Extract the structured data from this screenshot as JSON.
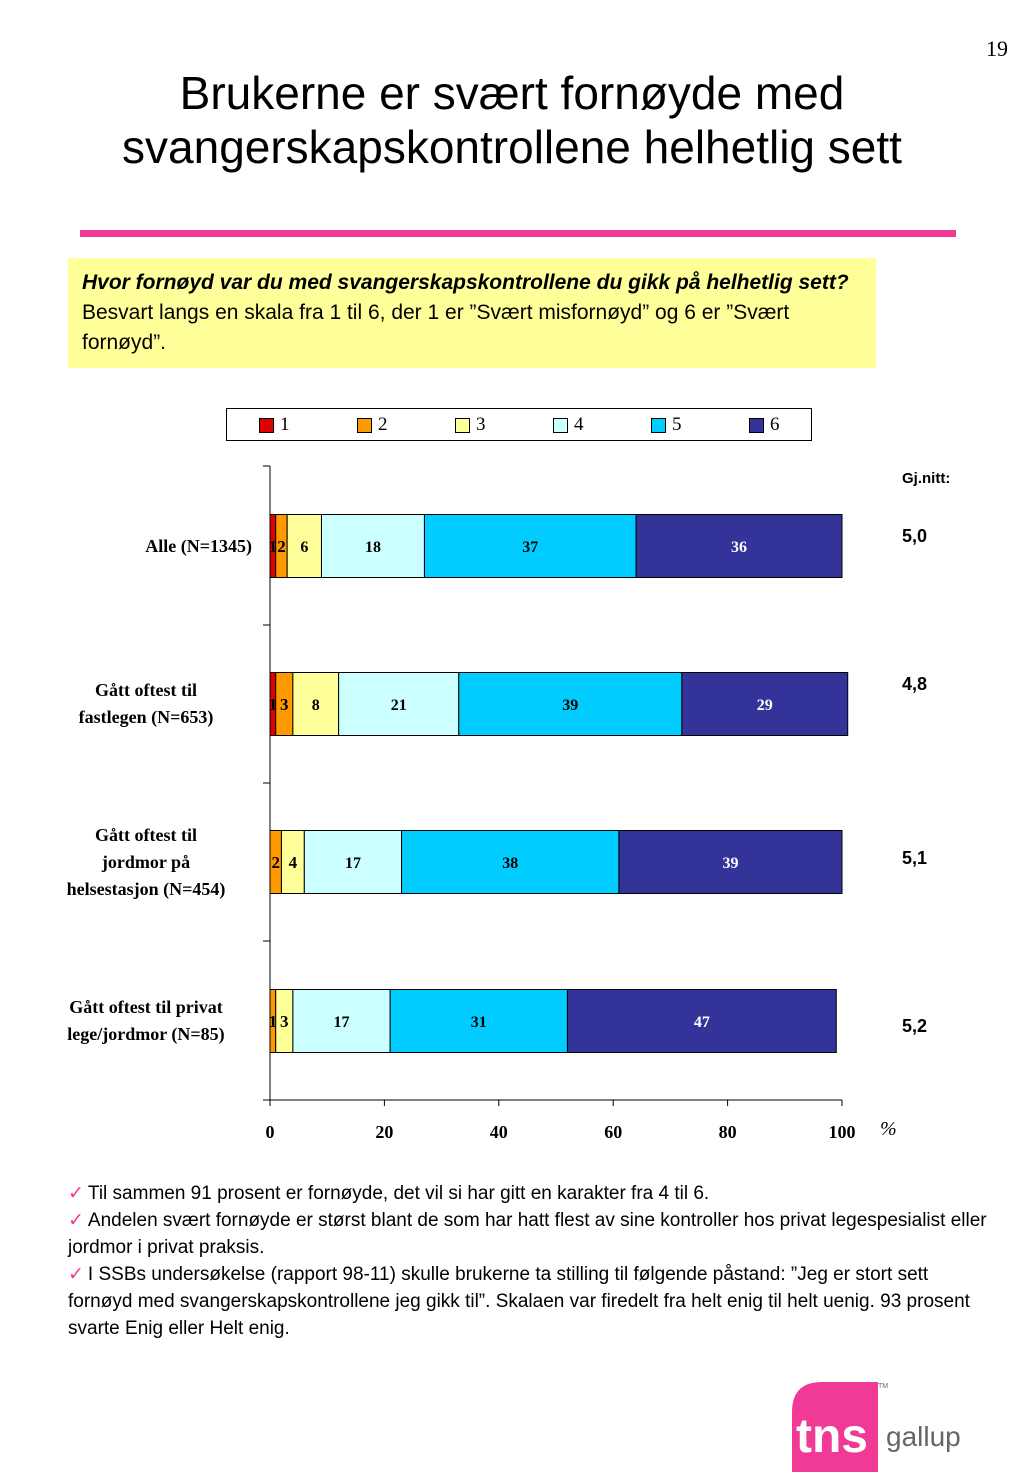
{
  "page_number": "19",
  "title": {
    "line1": "Brukerne er svært fornøyde med",
    "line2": "svangerskapskontrollene helhetlig sett"
  },
  "question": {
    "bold_part": "Hvor fornøyd var du med svangerskapskontrollene du gikk på helhetlig sett?",
    "rest": " Besvart langs en skala fra 1 til 6, der 1 er ”Svært misfornøyd” og 6 er ”Svært fornøyd”."
  },
  "avg_header": "Gj.nitt:",
  "categories": [
    {
      "lines": [
        "Alle (N=1345)"
      ],
      "average": "5,0"
    },
    {
      "lines": [
        "Gått oftest til",
        "fastlegen (N=653)"
      ],
      "average": "4,8"
    },
    {
      "lines": [
        "Gått oftest til",
        "jordmor på",
        "helsestasjon (N=454)"
      ],
      "average": "5,1"
    },
    {
      "lines": [
        "Gått oftest til privat",
        "lege/jordmor (N=85)"
      ],
      "average": "5,2"
    }
  ],
  "percent_unit": "%",
  "notes": [
    "Til sammen 91 prosent er fornøyde, det vil si har gitt en karakter fra 4 til 6.",
    "Andelen svært fornøyde er størst blant de som har hatt flest av sine kontroller hos privat legespesialist eller jordmor i privat praksis.",
    "I SSBs undersøkelse (rapport 98-11) skulle brukerne ta stilling til følgende påstand: ”Jeg er stort sett fornøyd med svangerskapskontrollene jeg gikk til”. Skalaen var firedelt fra helt enig til helt uenig. 93 prosent svarte Enig eller Helt enig."
  ],
  "logo": {
    "text_main": "tns",
    "text_sub": "gallup",
    "tm": "TM"
  },
  "chart_data": {
    "type": "bar",
    "orientation": "horizontal-stacked",
    "categories": [
      "Alle (N=1345)",
      "Gått oftest til fastlegen (N=653)",
      "Gått oftest til jordmor på helsestasjon (N=454)",
      "Gått oftest til privat lege/jordmor (N=85)"
    ],
    "series": [
      {
        "name": "1",
        "color": "#e00000",
        "values": [
          1,
          1,
          0,
          0
        ]
      },
      {
        "name": "2",
        "color": "#ff9900",
        "values": [
          2,
          3,
          2,
          1
        ]
      },
      {
        "name": "3",
        "color": "#ffff99",
        "values": [
          6,
          8,
          4,
          3
        ]
      },
      {
        "name": "4",
        "color": "#ccffff",
        "values": [
          18,
          21,
          17,
          17
        ]
      },
      {
        "name": "5",
        "color": "#00ccff",
        "values": [
          37,
          39,
          38,
          31
        ]
      },
      {
        "name": "6",
        "color": "#333399",
        "values": [
          36,
          29,
          39,
          47
        ]
      }
    ],
    "xlim": [
      0,
      100
    ],
    "xticks": [
      "0",
      "20",
      "40",
      "60",
      "80",
      "100"
    ],
    "legend_position": "top",
    "grid": false
  }
}
